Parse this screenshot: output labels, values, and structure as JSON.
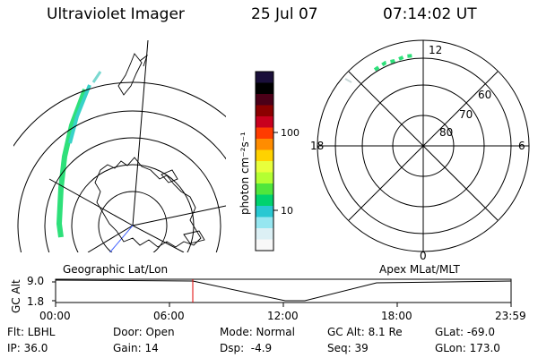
{
  "header": {
    "title": "Ultraviolet Imager",
    "date": "25 Jul 07",
    "time": "07:14:02 UT"
  },
  "left_map": {
    "label": "Geographic Lat/Lon"
  },
  "right_map": {
    "label": "Apex MLat/MLT",
    "mlt_labels": {
      "top": "12",
      "left": "18",
      "right": "6",
      "bottom": "0"
    },
    "lat_labels": [
      "60",
      "70",
      "80"
    ]
  },
  "colorbar": {
    "unit_label": "photon cm⁻²s⁻¹",
    "ticks": [
      "100",
      "10"
    ],
    "colors": [
      "#1a0f3a",
      "#000000",
      "#4b0018",
      "#8b0000",
      "#c8001e",
      "#ff3c00",
      "#ff8c00",
      "#ffd200",
      "#e8ff3c",
      "#b4ff32",
      "#50e63c",
      "#00d26e",
      "#28c8d2",
      "#96e6f0",
      "#dcf0f5",
      "#f8f8f8"
    ]
  },
  "timeline": {
    "ylabel": "GC Alt",
    "yticks": [
      "9.0",
      "1.8"
    ],
    "xticks": [
      "00:00",
      "06:00",
      "12:00",
      "18:00",
      "23:59"
    ],
    "marker_color": "#e00000"
  },
  "info": {
    "row1": [
      "Flt: LBHL",
      "Door: Open",
      "Mode: Normal",
      "GC Alt: 8.1 Re",
      "GLat: -69.0"
    ],
    "row2": [
      "IP: 36.0",
      "Gain: 14",
      "Dsp:  -4.9",
      "Seq: 39",
      "GLon: 173.0"
    ]
  }
}
